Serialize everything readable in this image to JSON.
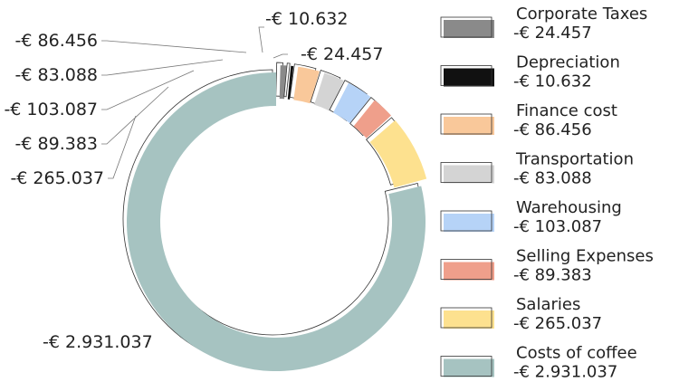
{
  "chart_data": {
    "type": "pie",
    "style": "donut",
    "legend_position": "right",
    "series": [
      {
        "name": "Corporate Taxes",
        "value": -24457,
        "label": "-€ 24.457",
        "color": "#8a8a8a"
      },
      {
        "name": "Depreciation",
        "value": -10632,
        "label": "-€ 10.632",
        "color": "#111111"
      },
      {
        "name": "Finance cost",
        "value": -86456,
        "label": "-€ 86.456",
        "color": "#f9c89a"
      },
      {
        "name": "Transportation",
        "value": -83088,
        "label": "-€ 83.088",
        "color": "#d4d4d4"
      },
      {
        "name": "Warehousing",
        "value": -103087,
        "label": "-€ 103.087",
        "color": "#b6d3f7"
      },
      {
        "name": "Selling Expenses",
        "value": -89383,
        "label": "-€ 89.383",
        "color": "#ef9f8b"
      },
      {
        "name": "Salaries",
        "value": -265037,
        "label": "-€ 265.037",
        "color": "#fde18f"
      },
      {
        "name": "Costs of coffee",
        "value": -2931037,
        "label": "-€ 2.931.037",
        "color": "#a6c3c1"
      }
    ]
  }
}
